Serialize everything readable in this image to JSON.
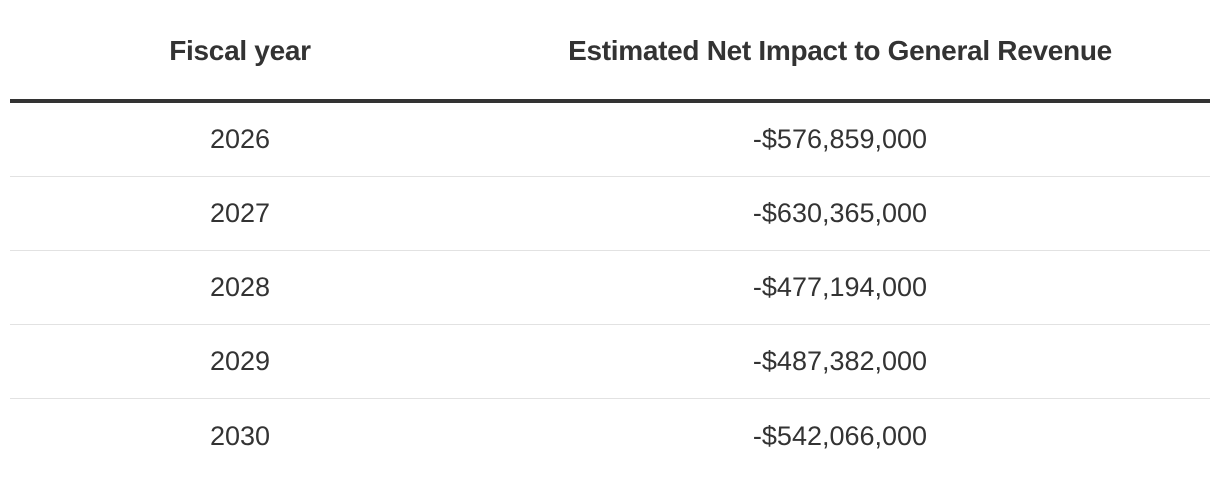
{
  "table": {
    "headers": {
      "fiscal_year": "Fiscal year",
      "impact": "Estimated Net Impact to General Revenue"
    },
    "rows": [
      {
        "year": "2026",
        "impact": "-$576,859,000"
      },
      {
        "year": "2027",
        "impact": "-$630,365,000"
      },
      {
        "year": "2028",
        "impact": "-$477,194,000"
      },
      {
        "year": "2029",
        "impact": "-$487,382,000"
      },
      {
        "year": "2030",
        "impact": "-$542,066,000"
      }
    ]
  },
  "colors": {
    "text": "#333333",
    "header_rule": "#333333",
    "row_divider": "#e2e2e2",
    "background": "#ffffff"
  }
}
